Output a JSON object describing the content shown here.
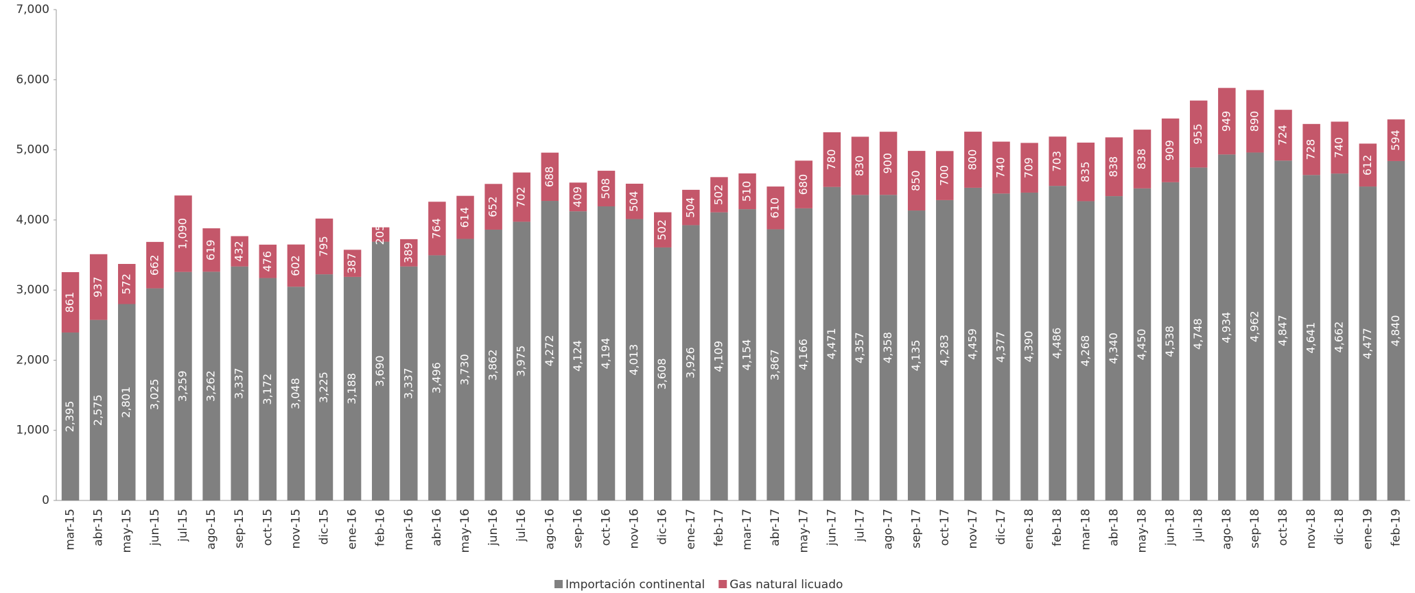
{
  "chart_data": {
    "type": "stacked_bar",
    "categories": [
      "mar-15",
      "abr-15",
      "may-15",
      "jun-15",
      "jul-15",
      "ago-15",
      "sep-15",
      "oct-15",
      "nov-15",
      "dic-15",
      "ene-16",
      "feb-16",
      "mar-16",
      "abr-16",
      "may-16",
      "jun-16",
      "jul-16",
      "ago-16",
      "sep-16",
      "oct-16",
      "nov-16",
      "dic-16",
      "ene-17",
      "feb-17",
      "mar-17",
      "abr-17",
      "may-17",
      "jun-17",
      "jul-17",
      "ago-17",
      "sep-17",
      "oct-17",
      "nov-17",
      "dic-17",
      "ene-18",
      "feb-18",
      "mar-18",
      "abr-18",
      "may-18",
      "jun-18",
      "jul-18",
      "ago-18",
      "sep-18",
      "oct-18",
      "nov-18",
      "dic-18",
      "ene-19",
      "feb-19"
    ],
    "series": [
      {
        "name": "Importación continental",
        "color": "#808080",
        "values": [
          2395,
          2575,
          2801,
          3025,
          3259,
          3262,
          3337,
          3172,
          3048,
          3225,
          3188,
          3690,
          3337,
          3496,
          3730,
          3862,
          3975,
          4272,
          4124,
          4194,
          4013,
          3608,
          3926,
          4109,
          4154,
          3867,
          4166,
          4471,
          4357,
          4358,
          4135,
          4283,
          4459,
          4377,
          4390,
          4486,
          4268,
          4340,
          4450,
          4538,
          4748,
          4934,
          4962,
          4847,
          4641,
          4662,
          4477,
          4840
        ],
        "value_labels": [
          "2,395",
          "2,575",
          "2,801",
          "3,025",
          "3,259",
          "3,262",
          "3,337",
          "3,172",
          "3,048",
          "3,225",
          "3,188",
          "3,690",
          "3,337",
          "3,496",
          "3,730",
          "3,862",
          "3,975",
          "4,272",
          "4,124",
          "4,194",
          "4,013",
          "3,608",
          "3,926",
          "4,109",
          "4,154",
          "3,867",
          "4,166",
          "4,471",
          "4,357",
          "4,358",
          "4,135",
          "4,283",
          "4,459",
          "4,377",
          "4,390",
          "4,486",
          "4,268",
          "4,340",
          "4,450",
          "4,538",
          "4,748",
          "4,934",
          "4,962",
          "4,847",
          "4,641",
          "4,662",
          "4,477",
          "4,840"
        ]
      },
      {
        "name": "Gas natural licuado",
        "color": "#c4576a",
        "values": [
          861,
          937,
          572,
          662,
          1090,
          619,
          432,
          476,
          602,
          795,
          387,
          205,
          389,
          764,
          614,
          652,
          702,
          688,
          409,
          508,
          504,
          502,
          504,
          502,
          510,
          610,
          680,
          780,
          830,
          900,
          850,
          700,
          800,
          740,
          709,
          703,
          835,
          838,
          838,
          909,
          955,
          949,
          890,
          724,
          728,
          740,
          612,
          594
        ],
        "value_labels": [
          "861",
          "937",
          "572",
          "662",
          "1,090",
          "619",
          "432",
          "476",
          "602",
          "795",
          "387",
          "205",
          "389",
          "764",
          "614",
          "652",
          "702",
          "688",
          "409",
          "508",
          "504",
          "502",
          "504",
          "502",
          "510",
          "610",
          "680",
          "780",
          "830",
          "900",
          "850",
          "700",
          "800",
          "740",
          "709",
          "703",
          "835",
          "838",
          "838",
          "909",
          "955",
          "949",
          "890",
          "724",
          "728",
          "740",
          "612",
          "594"
        ]
      }
    ],
    "ylim": [
      0,
      7000
    ],
    "yticks": [
      0,
      {
        "value": 1000,
        "label": "1,000"
      },
      {
        "value": 2000,
        "label": "2,000"
      },
      {
        "value": 3000,
        "label": "3,000"
      },
      {
        "value": 4000,
        "label": "4,000"
      },
      {
        "value": 5000,
        "label": "5,000"
      },
      {
        "value": 6000,
        "label": "6,000"
      },
      {
        "value": 7000,
        "label": "7,000"
      }
    ],
    "legend": "bottom"
  }
}
